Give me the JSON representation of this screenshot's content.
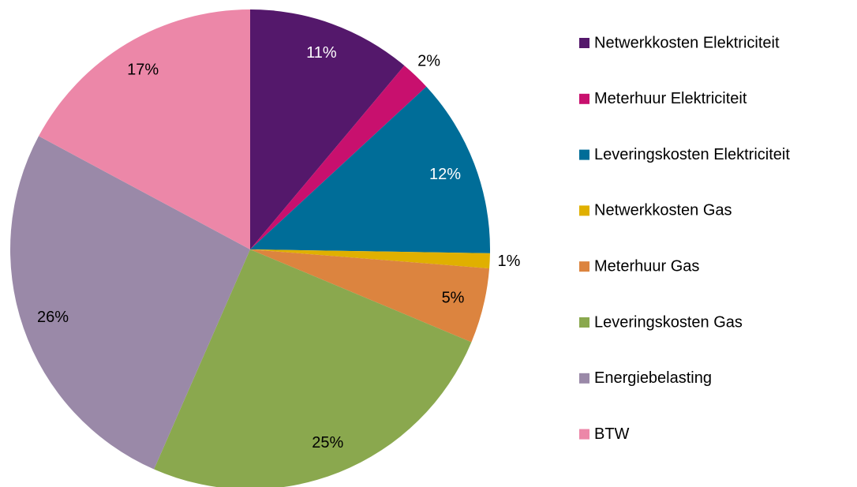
{
  "chart_data": {
    "type": "pie",
    "categories": [
      "Netwerkkosten Elektriciteit",
      "Meterhuur Elektriciteit",
      "Leveringskosten Elektriciteit",
      "Netwerkkosten Gas",
      "Meterhuur Gas",
      "Leveringskosten Gas",
      "Energiebelasting",
      "BTW"
    ],
    "values": [
      11,
      2,
      12,
      1,
      5,
      25,
      26,
      17
    ],
    "value_labels": [
      "11%",
      "2%",
      "12%",
      "1%",
      "5%",
      "25%",
      "26%",
      "17%"
    ],
    "colors": [
      "#54186b",
      "#c8106e",
      "#006d98",
      "#e0b000",
      "#dc843f",
      "#8aa84e",
      "#9a89a8",
      "#ec87a8"
    ],
    "legend": "right"
  }
}
